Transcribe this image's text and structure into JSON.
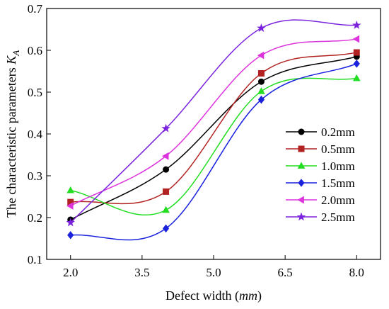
{
  "chart_data": {
    "type": "line",
    "xlabel": "Defect width",
    "xlabel_unit": "mm",
    "ylabel": "The characteristic parameters",
    "ylabel_symbol": "K",
    "ylabel_subscript": "A",
    "xlim": [
      1.5,
      8.5
    ],
    "ylim": [
      0.1,
      0.7
    ],
    "x_ticks": [
      2.0,
      3.5,
      5.0,
      6.5,
      8.0
    ],
    "x_tick_labels": [
      "2.0",
      "3.5",
      "5.0",
      "6.5",
      "8.0"
    ],
    "y_ticks": [
      0.1,
      0.2,
      0.3,
      0.4,
      0.5,
      0.6,
      0.7
    ],
    "y_tick_labels": [
      "0.1",
      "0.2",
      "0.3",
      "0.4",
      "0.5",
      "0.6",
      "0.7"
    ],
    "grid": false,
    "legend_position": "right",
    "x": [
      2.0,
      4.0,
      6.0,
      8.0
    ],
    "series": [
      {
        "name": "0.2mm",
        "values": [
          0.195,
          0.315,
          0.525,
          0.585
        ],
        "color": "#000000",
        "marker": "circle"
      },
      {
        "name": "0.5mm",
        "values": [
          0.237,
          0.262,
          0.545,
          0.595
        ],
        "color": "#b22222",
        "marker": "square"
      },
      {
        "name": "1.0mm",
        "values": [
          0.265,
          0.218,
          0.502,
          0.533
        ],
        "color": "#22dd22",
        "marker": "triangle-up"
      },
      {
        "name": "1.5mm",
        "values": [
          0.158,
          0.174,
          0.482,
          0.568
        ],
        "color": "#1a22dd",
        "marker": "diamond"
      },
      {
        "name": "2.0mm",
        "values": [
          0.228,
          0.347,
          0.588,
          0.627
        ],
        "color": "#dd33dd",
        "marker": "triangle-left"
      },
      {
        "name": "2.5mm",
        "values": [
          0.188,
          0.413,
          0.653,
          0.66
        ],
        "color": "#7a22dd",
        "marker": "star"
      }
    ]
  }
}
